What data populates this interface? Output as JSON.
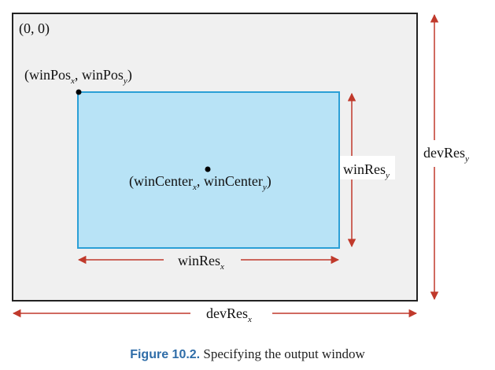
{
  "diagram": {
    "origin_label": "(0, 0)",
    "win_pos": {
      "main": "(winPos",
      "sub_x": "x",
      "sep": ", winPos",
      "sub_y": "y",
      "end": ")"
    },
    "win_center": {
      "main": "(winCenter",
      "sub_x": "x",
      "sep": ", winCenter",
      "sub_y": "y",
      "end": ")"
    },
    "win_res_x": {
      "base": "winRes",
      "sub": "x"
    },
    "win_res_y": {
      "base": "winRes",
      "sub": "y"
    },
    "dev_res_x": {
      "base": "devRes",
      "sub": "x"
    },
    "dev_res_y": {
      "base": "devRes",
      "sub": "y"
    }
  },
  "caption": {
    "figure_number": "Figure 10.2.",
    "text": "Specifying the output window"
  },
  "colors": {
    "device_fill": "#f0f0f0",
    "device_stroke": "#222222",
    "window_fill": "#b8e3f6",
    "window_stroke": "#2b9fd6",
    "arrow": "#c0392b",
    "point": "#000000",
    "caption_accent": "#2f6da8"
  }
}
